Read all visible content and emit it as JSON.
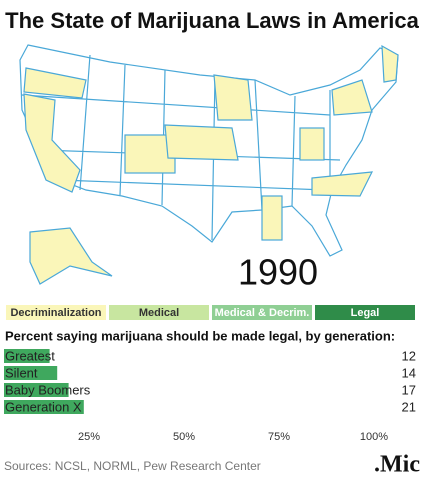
{
  "header": {
    "title": "The State of Marijuana Laws in America"
  },
  "map": {
    "year": "1990",
    "legend": [
      {
        "label": "Decriminalization",
        "color": "#faf6b9"
      },
      {
        "label": "Medical",
        "color": "#c8e6a0"
      },
      {
        "label": "Medical & Decrim.",
        "color": "#8fcf94"
      },
      {
        "label": "Legal",
        "color": "#2f8c49"
      }
    ]
  },
  "chart_data": {
    "type": "bar",
    "orientation": "horizontal",
    "title": "Percent saying marijuana should be made legal, by generation:",
    "categories": [
      "Greatest",
      "Silent",
      "Baby Boomers",
      "Generation X"
    ],
    "values": [
      12,
      14,
      17,
      21
    ],
    "color": "#3fa85e",
    "xlim": [
      0,
      100
    ],
    "xticks": [
      {
        "value": 25,
        "label": "25%"
      },
      {
        "value": 50,
        "label": "50%"
      },
      {
        "value": 75,
        "label": "75%"
      },
      {
        "value": 100,
        "label": "100%"
      }
    ]
  },
  "footer": {
    "source": "Sources: NCSL, NORML, Pew Research Center",
    "logo": ".Mic"
  }
}
